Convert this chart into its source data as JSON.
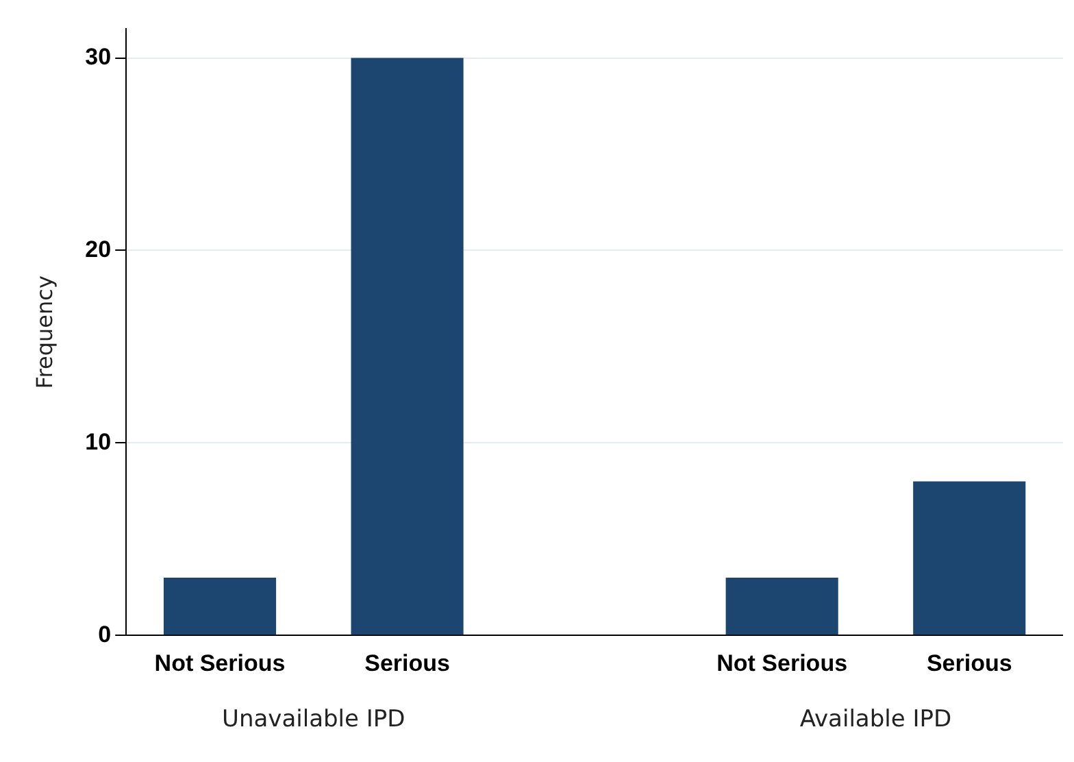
{
  "chart_data": {
    "type": "bar",
    "ylabel": "Frequency",
    "categories": [
      "Not Serious",
      "Serious",
      null,
      "Not Serious",
      "Serious"
    ],
    "values": [
      3,
      30,
      null,
      3,
      8
    ],
    "color": "#1c4670",
    "ylim": [
      0,
      31.5
    ],
    "yticks": [
      0,
      10,
      20,
      30
    ],
    "grid": "y",
    "legend": false,
    "annotations": [
      "Unavailable IPD",
      "Available IPD"
    ]
  }
}
